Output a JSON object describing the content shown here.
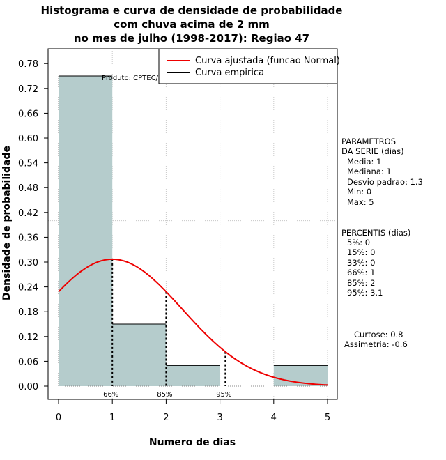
{
  "chart_data": {
    "type": "bar",
    "title_lines": [
      "Histograma e curva de densidade de probabilidade",
      "com chuva acima de 2 mm",
      "no mes de julho (1998-2017): Regiao 47"
    ],
    "xlabel": "Numero de dias",
    "ylabel": "Densidade de probabilidade",
    "xlim": [
      -0.2,
      5.2
    ],
    "ylim": [
      -0.03,
      0.8
    ],
    "x_ticks": [
      0,
      1,
      2,
      3,
      4,
      5
    ],
    "y_ticks": [
      "0.00",
      "0.06",
      "0.12",
      "0.18",
      "0.24",
      "0.30",
      "0.36",
      "0.42",
      "0.48",
      "0.54",
      "0.60",
      "0.66",
      "0.72",
      "0.78"
    ],
    "histogram": {
      "name": "Curva empirica",
      "bins": [
        {
          "x0": 0,
          "x1": 1,
          "density": 0.75
        },
        {
          "x0": 1,
          "x1": 2,
          "density": 0.15
        },
        {
          "x0": 2,
          "x1": 3,
          "density": 0.05
        },
        {
          "x0": 3,
          "x1": 4,
          "density": 0.0
        },
        {
          "x0": 4,
          "x1": 5,
          "density": 0.05
        }
      ],
      "fill_color": "#b5cccc"
    },
    "normal_curve": {
      "name": "Curva ajustada (funcao Normal)",
      "mean": 1.0,
      "sd": 1.3,
      "color": "#ee0000"
    },
    "percentile_lines": [
      {
        "x": 1,
        "label": "66%"
      },
      {
        "x": 2,
        "label": "85%"
      },
      {
        "x": 3.1,
        "label": "95%"
      }
    ],
    "grid": {
      "x": [
        1,
        2,
        3,
        4,
        5
      ],
      "y": [
        0.4
      ]
    },
    "legend": [
      {
        "label": "Curva ajustada (funcao Normal)",
        "color": "#ee0000"
      },
      {
        "label": "Curva empirica",
        "color": "#000000"
      }
    ],
    "legend_position": "top-right",
    "credit": "Produto: CPTEC/INPE"
  },
  "side_panel": {
    "params_title_1": "PARAMETROS",
    "params_title_2": "DA SERIE (dias)",
    "params": [
      "Media: 1",
      "Mediana: 1",
      "Desvio padrao: 1.3",
      "Min: 0",
      "Max: 5"
    ],
    "percentis_title": "PERCENTIS (dias)",
    "percentis": [
      "5%: 0",
      "15%: 0",
      "33%: 0",
      "66%: 1",
      "85%: 2",
      "95%: 3.1"
    ],
    "curtose": "Curtose: 0.8",
    "assimetria": "Assimetria: -0.6"
  }
}
